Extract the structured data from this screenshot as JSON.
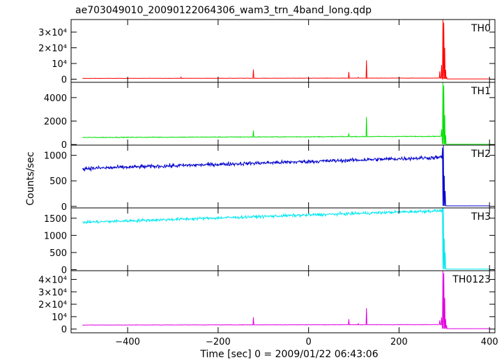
{
  "title": "ae703049010_20090122064306_wam3_trn_4band_long.qdp",
  "xlabel": "Time [sec] 0 = 2009/01/22 06:43:06",
  "ylabel": "Counts/sec",
  "chart_data": [
    {
      "type": "line",
      "name": "TH0",
      "color": "#ff0000",
      "xlim": [
        -525,
        412
      ],
      "ylim": [
        -2000,
        38000
      ],
      "xticks": [
        -400,
        -200,
        0,
        200,
        400
      ],
      "yticks": [
        {
          "value": 0,
          "label": "0"
        },
        {
          "value": 10000,
          "label": "10⁴"
        },
        {
          "value": 20000,
          "label": "2×10⁴"
        },
        {
          "value": 30000,
          "label": "3×10⁴"
        }
      ],
      "baseline": 500,
      "baseline_end": 700,
      "noise": 100,
      "series_x_range": [
        -500,
        400
      ],
      "spikes": [
        [
          -282,
          1300
        ],
        [
          -122,
          6200
        ],
        [
          40,
          900
        ],
        [
          89,
          4600
        ],
        [
          110,
          1200
        ],
        [
          128,
          12000
        ],
        [
          290,
          5000
        ],
        [
          294,
          9000
        ],
        [
          297,
          38000
        ],
        [
          299,
          36000
        ],
        [
          301,
          20000
        ],
        [
          303,
          6000
        ],
        [
          305,
          1500
        ]
      ],
      "post_level": 150
    },
    {
      "type": "line",
      "name": "TH1",
      "color": "#00e000",
      "xlim": [
        -525,
        412
      ],
      "ylim": [
        -50,
        5300
      ],
      "xticks": [
        -400,
        -200,
        0,
        200,
        400
      ],
      "yticks": [
        {
          "value": 0,
          "label": "0"
        },
        {
          "value": 2000,
          "label": "2000"
        },
        {
          "value": 4000,
          "label": "4000"
        }
      ],
      "baseline": 600,
      "baseline_end": 700,
      "noise": 30,
      "series_x_range": [
        -500,
        400
      ],
      "spikes": [
        [
          -122,
          1200
        ],
        [
          89,
          950
        ],
        [
          128,
          2350
        ],
        [
          294,
          1300
        ],
        [
          297,
          5300
        ],
        [
          299,
          5000
        ],
        [
          301,
          2500
        ],
        [
          303,
          800
        ]
      ],
      "post_level": 20
    },
    {
      "type": "line",
      "name": "TH2",
      "color": "#0000cc",
      "xlim": [
        -525,
        412
      ],
      "ylim": [
        -30,
        1200
      ],
      "xticks": [
        -400,
        -200,
        0,
        200,
        400
      ],
      "yticks": [
        {
          "value": 0,
          "label": "0"
        },
        {
          "value": 500,
          "label": "500"
        },
        {
          "value": 1000,
          "label": "1000"
        }
      ],
      "baseline": 740,
      "baseline_end": 960,
      "noise": 35,
      "series_x_range": [
        -500,
        400
      ],
      "spikes": [
        [
          296,
          1150
        ],
        [
          298,
          1200
        ],
        [
          300,
          600
        ],
        [
          302,
          300
        ]
      ],
      "post_level": 10
    },
    {
      "type": "line",
      "name": "TH3",
      "color": "#00e8f0",
      "xlim": [
        -525,
        412
      ],
      "ylim": [
        -30,
        1800
      ],
      "xticks": [
        -400,
        -200,
        0,
        200,
        400
      ],
      "yticks": [
        {
          "value": 0,
          "label": "0"
        },
        {
          "value": 500,
          "label": "500"
        },
        {
          "value": 1000,
          "label": "1000"
        },
        {
          "value": 1500,
          "label": "1500"
        }
      ],
      "baseline": 1380,
      "baseline_end": 1720,
      "noise": 40,
      "series_x_range": [
        -500,
        400
      ],
      "spikes": [
        [
          296,
          1790
        ],
        [
          298,
          1800
        ],
        [
          300,
          900
        ],
        [
          302,
          500
        ]
      ],
      "post_level": 15
    },
    {
      "type": "line",
      "name": "TH0123",
      "color": "#e000e0",
      "xlim": [
        -525,
        412
      ],
      "ylim": [
        -3000,
        47000
      ],
      "xticks": [
        -400,
        -200,
        0,
        200,
        400
      ],
      "yticks": [
        {
          "value": 0,
          "label": "0"
        },
        {
          "value": 10000,
          "label": "10⁴"
        },
        {
          "value": 20000,
          "label": "2×10⁴"
        },
        {
          "value": 30000,
          "label": "3×10⁴"
        },
        {
          "value": 40000,
          "label": "4×10⁴"
        }
      ],
      "baseline": 3200,
      "baseline_end": 3600,
      "noise": 150,
      "series_x_range": [
        -500,
        400
      ],
      "spikes": [
        [
          -122,
          9500
        ],
        [
          89,
          8000
        ],
        [
          110,
          4400
        ],
        [
          128,
          16800
        ],
        [
          290,
          7000
        ],
        [
          294,
          9500
        ],
        [
          297,
          47000
        ],
        [
          299,
          45000
        ],
        [
          301,
          25000
        ],
        [
          303,
          8000
        ],
        [
          305,
          3000
        ]
      ],
      "post_level": 300
    }
  ]
}
